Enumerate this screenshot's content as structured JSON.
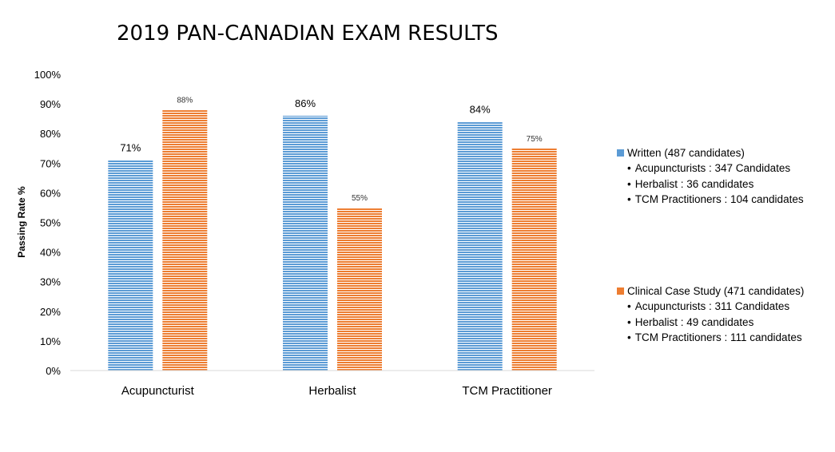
{
  "chart_data": {
    "type": "bar",
    "title": "2019 PAN-CANADIAN EXAM RESULTS",
    "ylabel": "Passing Rate %",
    "xlabel": "",
    "categories": [
      "Acupuncturist",
      "Herbalist",
      "TCM Practitioner"
    ],
    "ylim": [
      0,
      100
    ],
    "yticks": [
      0,
      10,
      20,
      30,
      40,
      50,
      60,
      70,
      80,
      90,
      100
    ],
    "ytick_labels": [
      "0%",
      "10%",
      "20%",
      "30%",
      "40%",
      "50%",
      "60%",
      "70%",
      "80%",
      "90%",
      "100%"
    ],
    "grid": false,
    "legend_position": "right",
    "series": [
      {
        "name": "Written (487 candidates)",
        "color": "#5b9bd5",
        "values": [
          71,
          86,
          84
        ],
        "data_labels": [
          "71%",
          "86%",
          "84%"
        ],
        "details": [
          "Acupuncturists : 347 Candidates",
          "Herbalist : 36 candidates",
          "TCM Practitioners : 104 candidates"
        ]
      },
      {
        "name": "Clinical Case Study (471 candidates)",
        "color": "#ed7d31",
        "values": [
          88,
          55,
          75
        ],
        "data_labels": [
          "88%",
          "55%",
          "75%"
        ],
        "details": [
          "Acupuncturists : 311 Candidates",
          "Herbalist : 49 candidates",
          "TCM Practitioners : 111 candidates"
        ]
      }
    ]
  }
}
